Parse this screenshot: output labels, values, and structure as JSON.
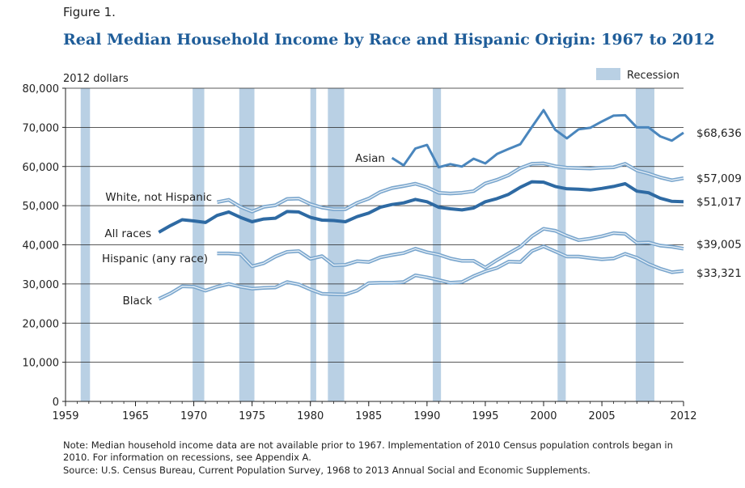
{
  "figure_label": "Figure 1.",
  "title": "Real Median Household Income by Race and Hispanic Origin: 1967 to 2012",
  "note": "Note: Median household income data are not available prior to 1967. Implementation of 2010 Census population controls began in 2010. For information on recessions, see Appendix A.",
  "source": "Source: U.S. Census Bureau, Current Population Survey, 1968 to 2013 Annual Social and Economic Supplements.",
  "chart_data": {
    "type": "line",
    "ylabel": "2012 dollars",
    "xlim": [
      1959,
      2012
    ],
    "ylim": [
      0,
      80000
    ],
    "x_ticks": [
      1959,
      1965,
      1970,
      1975,
      1980,
      1985,
      1990,
      1995,
      2000,
      2005,
      2012
    ],
    "y_ticks": [
      "0",
      "10,000",
      "20,000",
      "30,000",
      "40,000",
      "50,000",
      "60,000",
      "70,000",
      "80,000"
    ],
    "grid": "horizontal",
    "legend": {
      "label": "Recession",
      "position": "top-right",
      "color": "#b9d0e4"
    },
    "recessions": [
      [
        1960.3,
        1961.1
      ],
      [
        1969.9,
        1970.9
      ],
      [
        1973.9,
        1975.2
      ],
      [
        1980.0,
        1980.5
      ],
      [
        1981.5,
        1982.9
      ],
      [
        1990.5,
        1991.2
      ],
      [
        2001.2,
        2001.9
      ],
      [
        2007.9,
        2009.5
      ]
    ],
    "colors": {
      "recession": "#b9d0e4",
      "dark_line": "#2e6aa3",
      "mid_line": "#4a86bd",
      "light_line": "#7aa6cd",
      "light_line_inner": "#e9f1f8",
      "grid": "#222222"
    },
    "series": [
      {
        "name": "Asian",
        "label": "Asian",
        "end_label": "$68,636",
        "style": "mid",
        "x": [
          1987,
          1988,
          1989,
          1990,
          1991,
          1992,
          1993,
          1994,
          1995,
          1996,
          1997,
          1998,
          1999,
          2000,
          2001,
          2002,
          2003,
          2004,
          2005,
          2006,
          2007,
          2008,
          2009,
          2010,
          2011,
          2012
        ],
        "y": [
          62200,
          60300,
          64600,
          65500,
          59800,
          60600,
          60000,
          62000,
          60800,
          63200,
          64500,
          65700,
          70100,
          74400,
          69400,
          67200,
          69500,
          69900,
          71500,
          73000,
          73100,
          70000,
          70000,
          67700,
          66600,
          68636
        ]
      },
      {
        "name": "White, not Hispanic",
        "label": "White, not Hispanic",
        "end_label": "$57,009",
        "style": "double",
        "x": [
          1972,
          1973,
          1974,
          1975,
          1976,
          1977,
          1978,
          1979,
          1980,
          1981,
          1982,
          1983,
          1984,
          1985,
          1986,
          1987,
          1988,
          1989,
          1990,
          1991,
          1992,
          1993,
          1994,
          1995,
          1996,
          1997,
          1998,
          1999,
          2000,
          2001,
          2002,
          2003,
          2004,
          2005,
          2006,
          2007,
          2008,
          2009,
          2010,
          2011,
          2012
        ],
        "y": [
          50900,
          51500,
          49700,
          48500,
          49700,
          50100,
          51700,
          51800,
          50400,
          49500,
          49100,
          49100,
          50700,
          51800,
          53500,
          54500,
          55000,
          55600,
          54700,
          53300,
          53100,
          53300,
          53700,
          55700,
          56600,
          57800,
          59600,
          60700,
          60800,
          60100,
          59700,
          59600,
          59500,
          59700,
          59800,
          60700,
          59000,
          58200,
          57200,
          56500,
          57009
        ]
      },
      {
        "name": "All races",
        "label": "All races",
        "end_label": "$51,017",
        "style": "thick",
        "x": [
          1967,
          1968,
          1969,
          1970,
          1971,
          1972,
          1973,
          1974,
          1975,
          1976,
          1977,
          1978,
          1979,
          1980,
          1981,
          1982,
          1983,
          1984,
          1985,
          1986,
          1987,
          1988,
          1989,
          1990,
          1991,
          1992,
          1993,
          1994,
          1995,
          1996,
          1997,
          1998,
          1999,
          2000,
          2001,
          2002,
          2003,
          2004,
          2005,
          2006,
          2007,
          2008,
          2009,
          2010,
          2011,
          2012
        ],
        "y": [
          43200,
          44900,
          46400,
          46100,
          45700,
          47500,
          48400,
          47000,
          45900,
          46600,
          46800,
          48500,
          48400,
          47000,
          46300,
          46200,
          45900,
          47200,
          48100,
          49600,
          50300,
          50700,
          51600,
          51000,
          49600,
          49200,
          48900,
          49400,
          51000,
          51800,
          52900,
          54700,
          56100,
          56000,
          54900,
          54300,
          54200,
          54000,
          54400,
          54900,
          55600,
          53700,
          53300,
          51900,
          51100,
          51017
        ]
      },
      {
        "name": "Hispanic (any race)",
        "label": "Hispanic (any race)",
        "end_label": "$39,005",
        "style": "double",
        "x": [
          1972,
          1973,
          1974,
          1975,
          1976,
          1977,
          1978,
          1979,
          1980,
          1981,
          1982,
          1983,
          1984,
          1985,
          1986,
          1987,
          1988,
          1989,
          1990,
          1991,
          1992,
          1993,
          1994,
          1995,
          1996,
          1997,
          1998,
          1999,
          2000,
          2001,
          2002,
          2003,
          2004,
          2005,
          2006,
          2007,
          2008,
          2009,
          2010,
          2011,
          2012
        ],
        "y": [
          37800,
          37800,
          37600,
          34500,
          35300,
          37000,
          38200,
          38400,
          36400,
          37100,
          34800,
          34900,
          35800,
          35600,
          36800,
          37400,
          37900,
          39000,
          38100,
          37500,
          36500,
          35900,
          35900,
          34200,
          36100,
          37800,
          39500,
          42200,
          44100,
          43600,
          42300,
          41200,
          41600,
          42200,
          43000,
          42800,
          40500,
          40600,
          39800,
          39500,
          39005
        ]
      },
      {
        "name": "Black",
        "label": "Black",
        "end_label": "$33,321",
        "style": "double",
        "x": [
          1967,
          1968,
          1969,
          1970,
          1971,
          1972,
          1973,
          1974,
          1975,
          1976,
          1977,
          1978,
          1979,
          1980,
          1981,
          1982,
          1983,
          1984,
          1985,
          1986,
          1987,
          1988,
          1989,
          1990,
          1991,
          1992,
          1993,
          1994,
          1995,
          1996,
          1997,
          1998,
          1999,
          2000,
          2001,
          2002,
          2003,
          2004,
          2005,
          2006,
          2007,
          2008,
          2009,
          2010,
          2011,
          2012
        ],
        "y": [
          26200,
          27600,
          29400,
          29300,
          28300,
          29300,
          30000,
          29300,
          28800,
          29000,
          29100,
          30500,
          29900,
          28600,
          27500,
          27400,
          27300,
          28300,
          30200,
          30300,
          30300,
          30500,
          32200,
          31700,
          31000,
          30300,
          30500,
          32000,
          33200,
          34100,
          35700,
          35600,
          38400,
          39600,
          38300,
          37000,
          37000,
          36600,
          36300,
          36500,
          37700,
          36700,
          35100,
          33900,
          33000,
          33321
        ]
      }
    ]
  }
}
